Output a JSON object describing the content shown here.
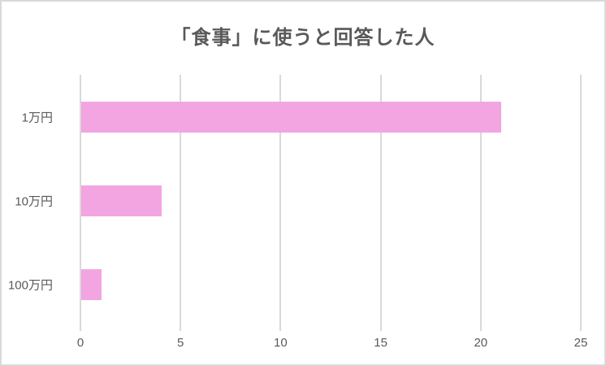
{
  "chart_data": {
    "type": "bar",
    "orientation": "horizontal",
    "title": "「食事」に使うと回答した人",
    "categories": [
      "1万円",
      "10万円",
      "100万円"
    ],
    "values": [
      21,
      4,
      1
    ],
    "xlabel": "",
    "ylabel": "",
    "xlim": [
      0,
      25
    ],
    "xticks": [
      0,
      5,
      10,
      15,
      20,
      25
    ],
    "grid": true,
    "legend": false,
    "bar_color": "#f3a5e2",
    "gridline_color": "#d9d9d9",
    "text_color": "#595959",
    "border_color": "#d9d9d9",
    "background_color": "#ffffff"
  }
}
